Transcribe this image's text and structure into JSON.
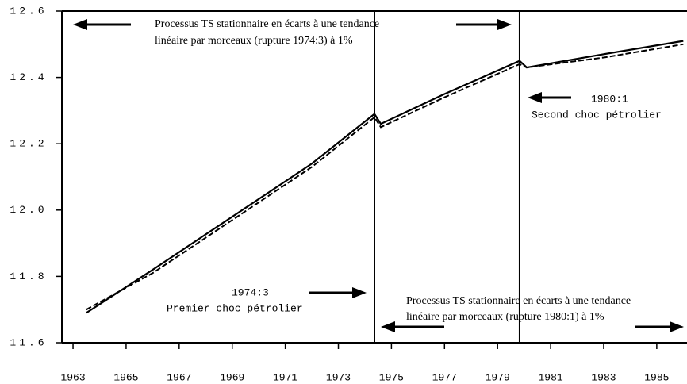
{
  "chart_data": {
    "type": "line",
    "x": [
      1963.5,
      1966,
      1969,
      1972,
      1974.36,
      1974.6,
      1977,
      1979.83,
      1980.1,
      1983,
      1986
    ],
    "series": [
      {
        "name": null,
        "color": "#000000",
        "dash": false,
        "values": [
          11.69,
          11.82,
          11.98,
          12.14,
          12.29,
          12.26,
          12.35,
          12.45,
          12.43,
          12.47,
          12.51
        ]
      },
      {
        "name": null,
        "color": "#000000",
        "dash": true,
        "values": [
          11.7,
          11.81,
          11.97,
          12.13,
          12.28,
          12.25,
          12.34,
          12.44,
          12.43,
          12.46,
          12.5
        ]
      }
    ],
    "breaks": [
      1974.36,
      1979.83
    ],
    "xlim": [
      1962.58,
      1986.14
    ],
    "xticks": [
      1963,
      1965,
      1967,
      1969,
      1971,
      1973,
      1975,
      1977,
      1979,
      1981,
      1983,
      1985
    ],
    "ylim": [
      11.6,
      12.6
    ],
    "yticks": [
      {
        "value": 11.6,
        "label": "11.6"
      },
      {
        "value": 11.8,
        "label": "11.8"
      },
      {
        "value": 12,
        "label": "12.0"
      },
      {
        "value": 12.2,
        "label": "12.2"
      },
      {
        "value": 12.4,
        "label": "12.4"
      },
      {
        "value": 12.6,
        "label": "12.6"
      }
    ],
    "annotations": [
      {
        "lines": [
          "Processus TS stationnaire en écarts à une tendance",
          "linéaire par morceaux (rupture 1974:3) à 1%"
        ]
      },
      {
        "lines": [
          "1980:1",
          "Second choc pétrolier"
        ]
      },
      {
        "lines": [
          "1974:3",
          "Premier choc pétrolier"
        ]
      },
      {
        "lines": [
          "Processus TS stationnaire en écarts à une tendance",
          "linéaire par morceaux (rupture 1980:1) à 1%"
        ]
      }
    ]
  }
}
